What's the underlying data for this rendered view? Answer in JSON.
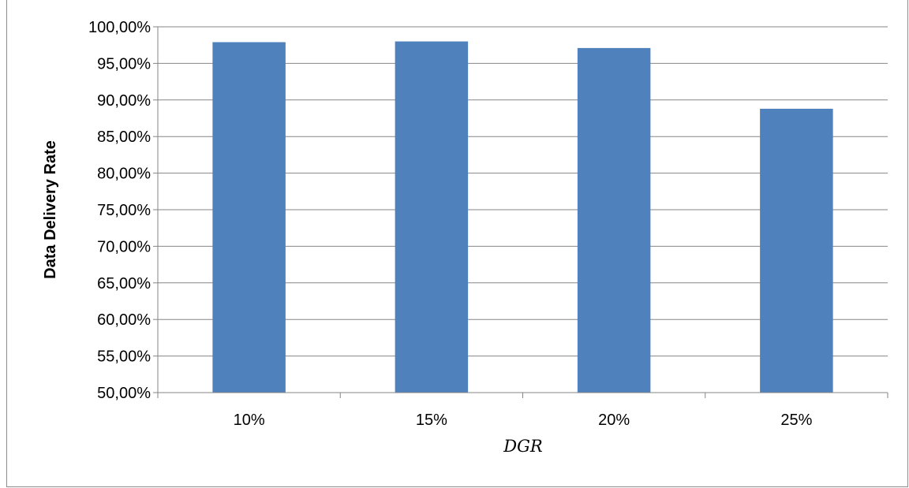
{
  "chart_data": {
    "type": "bar",
    "categories": [
      "10%",
      "15%",
      "20%",
      "25%"
    ],
    "values": [
      97.9,
      98.0,
      97.1,
      88.8
    ],
    "xlabel": "DGR",
    "ylabel": "Data Delivery Rate",
    "ylim": [
      50,
      100
    ],
    "ytick_step": 5,
    "ytick_labels": [
      "50,00%",
      "55,00%",
      "60,00%",
      "65,00%",
      "70,00%",
      "75,00%",
      "80,00%",
      "85,00%",
      "90,00%",
      "95,00%",
      "100,00%"
    ],
    "grid": true,
    "legend": "none",
    "bar_color": "#4f81bd",
    "grid_color": "#868686"
  }
}
